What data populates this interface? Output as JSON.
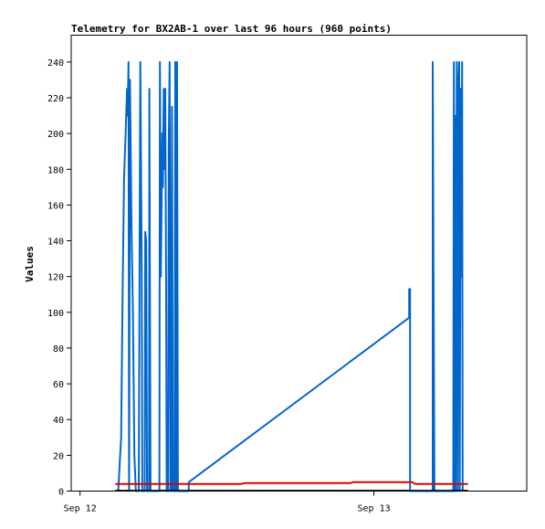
{
  "chart_data": {
    "type": "line",
    "title": "Telemetry for BX2AB-1 over last 96 hours (960 points)",
    "xlabel": "",
    "ylabel": "Values",
    "ylim": [
      0,
      255
    ],
    "yticks": [
      0,
      20,
      40,
      60,
      80,
      100,
      120,
      140,
      160,
      180,
      200,
      220,
      240
    ],
    "xlim": [
      -0.03,
      1.52
    ],
    "xticks": [
      {
        "x": 0,
        "label": "Sep 12"
      },
      {
        "x": 1,
        "label": "Sep 13"
      }
    ],
    "grid": false,
    "legend": "none",
    "series": [
      {
        "color": "#0066cc",
        "points": [
          [
            0.13,
            0
          ],
          [
            0.14,
            30
          ],
          [
            0.145,
            110
          ],
          [
            0.15,
            175
          ],
          [
            0.155,
            200
          ],
          [
            0.16,
            225
          ],
          [
            0.162,
            210
          ],
          [
            0.165,
            240
          ],
          [
            0.167,
            0
          ],
          [
            0.17,
            230
          ],
          [
            0.172,
            200
          ],
          [
            0.175,
            150
          ],
          [
            0.18,
            100
          ],
          [
            0.185,
            20
          ],
          [
            0.19,
            0
          ],
          [
            0.2,
            0
          ],
          [
            0.205,
            240
          ],
          [
            0.21,
            120
          ],
          [
            0.212,
            0
          ],
          [
            0.22,
            0
          ],
          [
            0.222,
            145
          ],
          [
            0.225,
            140
          ],
          [
            0.228,
            0
          ],
          [
            0.235,
            0
          ],
          [
            0.236,
            225
          ],
          [
            0.24,
            0
          ],
          [
            0.27,
            0
          ],
          [
            0.272,
            240
          ],
          [
            0.275,
            120
          ],
          [
            0.28,
            200
          ],
          [
            0.282,
            170
          ],
          [
            0.285,
            225
          ],
          [
            0.287,
            180
          ],
          [
            0.29,
            225
          ],
          [
            0.293,
            110
          ],
          [
            0.295,
            0
          ],
          [
            0.3,
            0
          ],
          [
            0.302,
            195
          ],
          [
            0.305,
            240
          ],
          [
            0.308,
            0
          ],
          [
            0.31,
            0
          ],
          [
            0.313,
            215
          ],
          [
            0.316,
            0
          ],
          [
            0.322,
            0
          ],
          [
            0.324,
            240
          ],
          [
            0.327,
            0
          ],
          [
            0.33,
            240
          ],
          [
            0.333,
            0
          ],
          [
            0.37,
            0
          ],
          [
            0.37,
            5
          ],
          [
            1.12,
            97
          ],
          [
            1.12,
            113
          ],
          [
            1.123,
            113
          ],
          [
            1.123,
            0
          ],
          [
            1.2,
            0
          ],
          [
            1.2,
            240
          ],
          [
            1.203,
            120
          ],
          [
            1.206,
            0
          ],
          [
            1.27,
            0
          ],
          [
            1.272,
            240
          ],
          [
            1.274,
            0
          ],
          [
            1.276,
            210
          ],
          [
            1.278,
            0
          ],
          [
            1.28,
            145
          ],
          [
            1.282,
            240
          ],
          [
            1.285,
            0
          ],
          [
            1.287,
            225
          ],
          [
            1.29,
            240
          ],
          [
            1.292,
            0
          ],
          [
            1.295,
            225
          ],
          [
            1.297,
            120
          ],
          [
            1.3,
            240
          ],
          [
            1.302,
            0
          ]
        ]
      },
      {
        "color": "#dd0000",
        "points": [
          [
            0.12,
            4
          ],
          [
            0.55,
            4
          ],
          [
            0.56,
            4.5
          ],
          [
            0.92,
            4.5
          ],
          [
            0.93,
            5
          ],
          [
            1.13,
            5
          ],
          [
            1.14,
            4
          ],
          [
            1.32,
            4
          ]
        ]
      },
      {
        "color": "#000000",
        "points": [
          [
            0.12,
            0.3
          ],
          [
            1.32,
            0.3
          ]
        ]
      }
    ]
  }
}
